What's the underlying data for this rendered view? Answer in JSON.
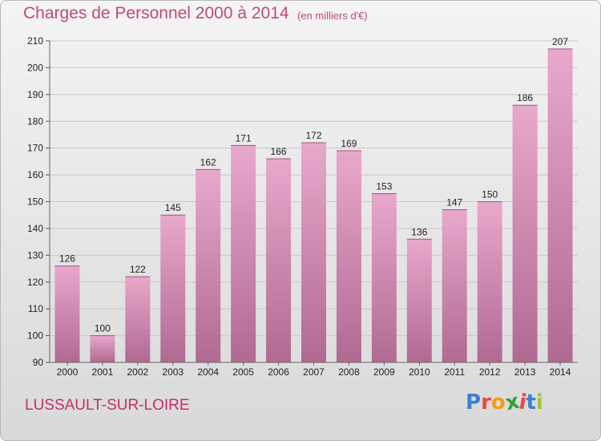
{
  "header": {
    "title": "Charges de Personnel 2000 à 2014",
    "subtitle": "(en milliers d'€)"
  },
  "footer": {
    "town": "LUSSAULT-SUR-LOIRE",
    "logo": {
      "text": "Proxiti",
      "letter_colors": [
        "#3b7fd4",
        "#e8473f",
        "#f39c12",
        "#3b9c3b",
        "#e8473f",
        "#3b7fd4",
        "#9bc53d"
      ]
    }
  },
  "colors": {
    "bar_top": "#e8a8cc",
    "bar_bottom": "#b06a92",
    "title": "#c04a7a",
    "grid": "#c8c8c8"
  },
  "chart_data": {
    "type": "bar",
    "title": "Charges de Personnel 2000 à 2014",
    "subtitle": "(en milliers d'€)",
    "categories": [
      "2000",
      "2001",
      "2002",
      "2003",
      "2004",
      "2005",
      "2006",
      "2007",
      "2008",
      "2009",
      "2010",
      "2011",
      "2012",
      "2013",
      "2014"
    ],
    "values": [
      126,
      100,
      122,
      145,
      162,
      171,
      166,
      172,
      169,
      153,
      136,
      147,
      150,
      186,
      207
    ],
    "ylim": [
      90,
      210
    ],
    "yticks": [
      90,
      100,
      110,
      120,
      130,
      140,
      150,
      160,
      170,
      180,
      190,
      200,
      210
    ],
    "grid": true,
    "data_labels": true
  }
}
